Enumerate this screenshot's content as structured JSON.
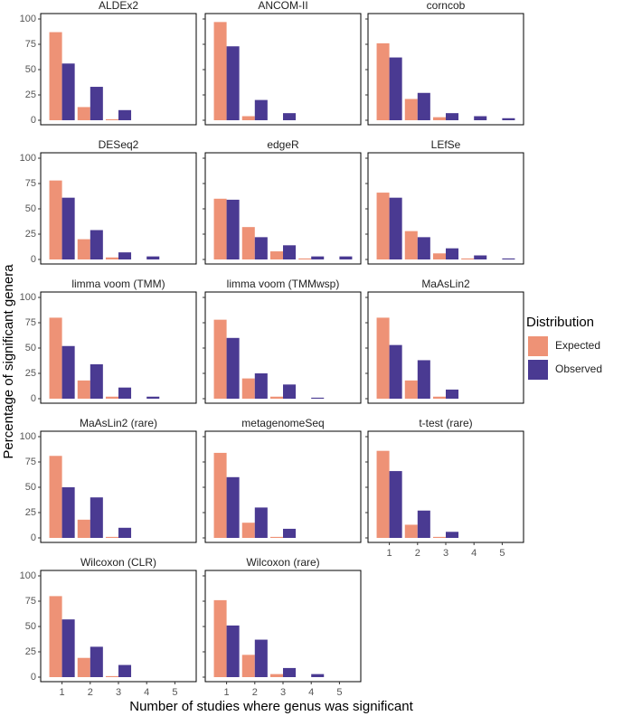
{
  "chart_data": {
    "type": "bar",
    "x_label": "Number of studies where genus was significant",
    "y_label": "Percentage of significant genera",
    "legend_title": "Distribution",
    "categories": [
      1,
      2,
      3,
      4,
      5
    ],
    "ylim": [
      0,
      100
    ],
    "yticks": [
      0,
      25,
      50,
      75,
      100
    ],
    "series": [
      {
        "name": "Expected",
        "color": "#ee9276"
      },
      {
        "name": "Observed",
        "color": "#4a3a92"
      }
    ],
    "facets": [
      {
        "title": "ALDEx2",
        "values": [
          [
            87,
            13,
            1,
            0,
            0
          ],
          [
            56,
            33,
            10,
            0,
            0
          ]
        ]
      },
      {
        "title": "ANCOM-II",
        "values": [
          [
            97,
            4,
            0,
            0,
            0
          ],
          [
            73,
            20,
            7,
            0,
            0
          ]
        ]
      },
      {
        "title": "corncob",
        "values": [
          [
            76,
            21,
            3,
            0,
            0
          ],
          [
            62,
            27,
            7,
            4,
            2
          ]
        ]
      },
      {
        "title": "DESeq2",
        "values": [
          [
            78,
            20,
            2,
            0,
            0
          ],
          [
            61,
            29,
            7,
            3,
            0
          ]
        ]
      },
      {
        "title": "edgeR",
        "values": [
          [
            60,
            32,
            8,
            1,
            0
          ],
          [
            59,
            22,
            14,
            3,
            3
          ]
        ]
      },
      {
        "title": "LEfSe",
        "values": [
          [
            66,
            28,
            6,
            1,
            0
          ],
          [
            61,
            22,
            11,
            4,
            1
          ]
        ]
      },
      {
        "title": "limma voom (TMM)",
        "values": [
          [
            80,
            18,
            2,
            0,
            0
          ],
          [
            52,
            34,
            11,
            2,
            0
          ]
        ]
      },
      {
        "title": "limma voom (TMMwsp)",
        "values": [
          [
            78,
            20,
            2,
            0,
            0
          ],
          [
            60,
            25,
            14,
            1,
            0
          ]
        ]
      },
      {
        "title": "MaAsLin2",
        "values": [
          [
            80,
            18,
            2,
            0,
            0
          ],
          [
            53,
            38,
            9,
            0,
            0
          ]
        ]
      },
      {
        "title": "MaAsLin2 (rare)",
        "values": [
          [
            81,
            18,
            1,
            0,
            0
          ],
          [
            50,
            40,
            10,
            0,
            0
          ]
        ]
      },
      {
        "title": "metagenomeSeq",
        "values": [
          [
            84,
            15,
            1,
            0,
            0
          ],
          [
            60,
            30,
            9,
            0,
            0
          ]
        ]
      },
      {
        "title": "t-test (rare)",
        "values": [
          [
            86,
            13,
            1,
            0,
            0
          ],
          [
            66,
            27,
            6,
            0,
            0
          ]
        ]
      },
      {
        "title": "Wilcoxon (CLR)",
        "values": [
          [
            80,
            19,
            1,
            0,
            0
          ],
          [
            57,
            30,
            12,
            0,
            0
          ]
        ]
      },
      {
        "title": "Wilcoxon (rare)",
        "values": [
          [
            76,
            22,
            3,
            0,
            0
          ],
          [
            51,
            37,
            9,
            3,
            0
          ]
        ]
      }
    ]
  }
}
